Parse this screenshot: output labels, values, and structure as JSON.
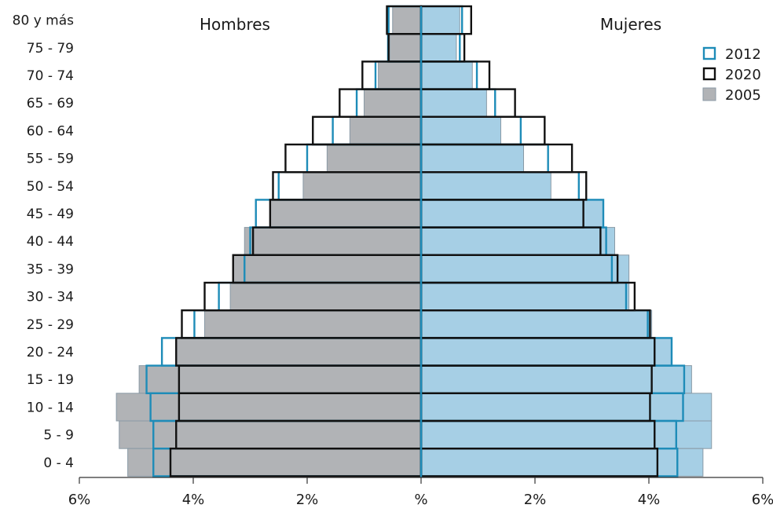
{
  "chart_data": {
    "type": "bar",
    "subtype": "population-pyramid",
    "left_label": "Hombres",
    "right_label": "Mujeres",
    "categories": [
      "80 y más",
      "75 - 79",
      "70 - 74",
      "65 - 69",
      "60 - 64",
      "55 - 59",
      "50 - 54",
      "45 - 49",
      "40 - 44",
      "35 - 39",
      "30 - 34",
      "25 - 29",
      "20 - 24",
      "15 - 19",
      "10 - 14",
      "5 - 9",
      "0 - 4"
    ],
    "xlim": [
      -6,
      6
    ],
    "x_ticks": [
      -6,
      -4,
      -2,
      0,
      2,
      4,
      6
    ],
    "x_tick_labels": [
      "6%",
      "4%",
      "2%",
      "%",
      "2%",
      "4%",
      "6%"
    ],
    "series": [
      {
        "name": "2005",
        "style": "filled",
        "colors": {
          "left_fill": "#b1b3b6",
          "right_fill": "#a6cfe5",
          "edge": "#8a9aa6"
        },
        "men": [
          0.5,
          0.55,
          0.75,
          1.0,
          1.25,
          1.65,
          2.07,
          2.65,
          3.1,
          3.3,
          3.35,
          3.8,
          4.3,
          4.95,
          5.35,
          5.3,
          5.15
        ],
        "women": [
          0.68,
          0.62,
          0.9,
          1.15,
          1.4,
          1.8,
          2.28,
          3.2,
          3.4,
          3.65,
          3.65,
          4.05,
          4.4,
          4.75,
          5.1,
          5.1,
          4.95
        ]
      },
      {
        "name": "2012",
        "style": "outline",
        "colors": {
          "edge": "#1e8cb8"
        },
        "men": [
          0.57,
          0.58,
          0.8,
          1.13,
          1.55,
          2.0,
          2.5,
          2.9,
          3.0,
          3.1,
          3.55,
          3.98,
          4.55,
          4.82,
          4.75,
          4.7,
          4.7
        ],
        "women": [
          0.72,
          0.68,
          0.98,
          1.3,
          1.75,
          2.23,
          2.77,
          3.2,
          3.25,
          3.35,
          3.6,
          3.98,
          4.4,
          4.62,
          4.6,
          4.48,
          4.5
        ]
      },
      {
        "name": "2020",
        "style": "outline",
        "colors": {
          "edge": "#111111"
        },
        "men": [
          0.6,
          0.57,
          1.03,
          1.43,
          1.9,
          2.38,
          2.6,
          2.65,
          2.95,
          3.3,
          3.8,
          4.2,
          4.3,
          4.25,
          4.25,
          4.3,
          4.4
        ],
        "women": [
          0.88,
          0.76,
          1.2,
          1.65,
          2.17,
          2.65,
          2.9,
          2.85,
          3.15,
          3.45,
          3.75,
          4.02,
          4.1,
          4.05,
          4.02,
          4.1,
          4.15
        ]
      }
    ],
    "legend": {
      "placement": "top-right",
      "order": [
        "2012",
        "2020",
        "2005"
      ]
    },
    "grid": false
  }
}
